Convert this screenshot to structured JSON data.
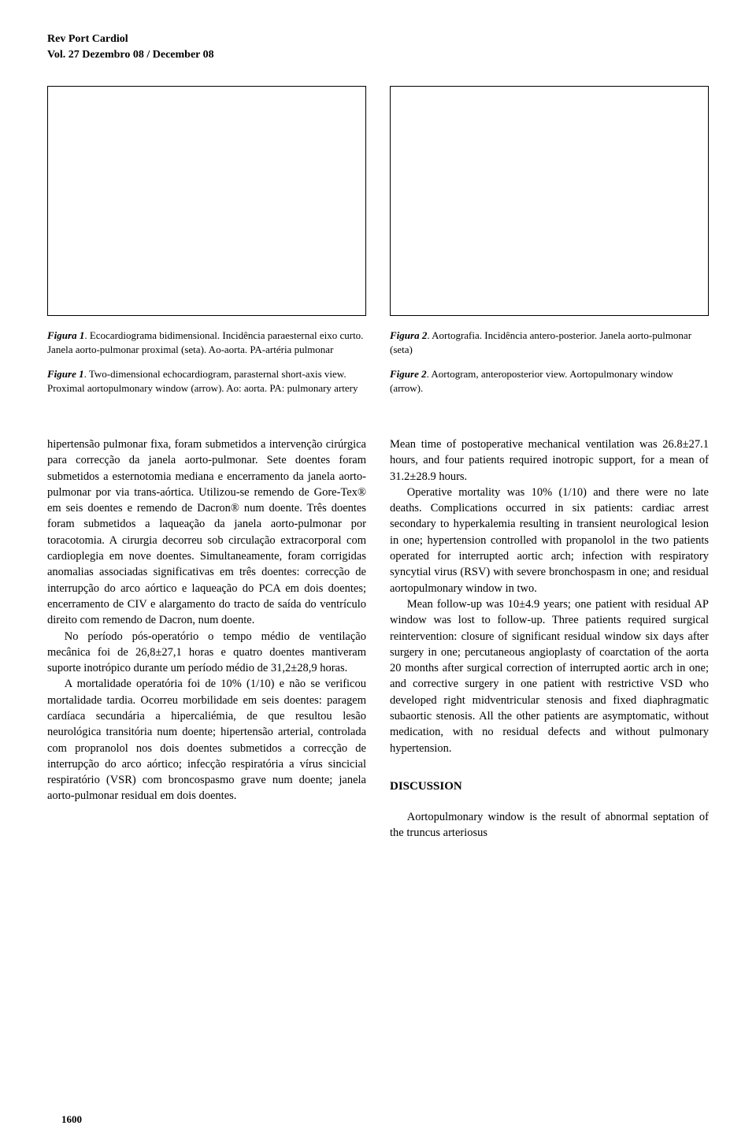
{
  "header": {
    "journal": "Rev Port Cardiol",
    "volume": "Vol. 27 Dezembro 08 / December 08"
  },
  "fig1": {
    "caption_pt_title": "Figura 1",
    "caption_pt_body": ". Ecocardiograma bidimensional. Incidência paraesternal eixo curto. Janela aorto-pulmonar proximal (seta). Ao-aorta. PA-artéria pulmonar",
    "caption_en_title": "Figure 1",
    "caption_en_body": ". Two-dimensional echocardiogram, parasternal short-axis view. Proximal aortopulmonary window (arrow). Ao: aorta. PA: pulmonary artery"
  },
  "fig2": {
    "caption_pt_title": "Figura 2",
    "caption_pt_body": ". Aortografia. Incidência antero-posterior. Janela aorto-pulmonar (seta)",
    "caption_en_title": "Figure 2",
    "caption_en_body": ". Aortogram, anteroposterior view. Aortopulmonary window (arrow)."
  },
  "body_left": {
    "p1": "hipertensão pulmonar fixa, foram submetidos a intervenção cirúrgica para correcção da janela aorto-pulmonar. Sete doentes foram submetidos a esternotomia mediana e encerramento da janela aorto-pulmonar por via trans-aórtica. Utilizou-se remendo de Gore-Tex® em seis doentes e remendo de Dacron® num doente. Três doentes foram submetidos a laqueação da janela aorto-pulmonar por toracotomia. A cirurgia decorreu sob circulação extracorporal com cardioplegia em nove doentes. Simultaneamente, foram corrigidas anomalias associadas significativas em três doentes: correcção de interrupção do arco aórtico e laqueação do PCA em dois doentes; encerramento de CIV e alargamento do tracto de saída do ventrículo direito com remendo de Dacron, num doente.",
    "p2": "No período pós-operatório o tempo médio de ventilação mecânica foi de 26,8±27,1 horas e quatro doentes mantiveram suporte inotrópico durante um período médio de 31,2±28,9 horas.",
    "p3": "A mortalidade operatória foi de 10% (1/10) e não se verificou mortalidade tardia. Ocorreu morbilidade em seis doentes: paragem cardíaca secundária a hipercaliémia, de que resultou lesão neurológica transitória num doente; hipertensão arterial, controlada com propranolol nos dois doentes submetidos a correcção de interrupção do arco aórtico; infecção respiratória a vírus sincicial respiratório (VSR) com broncospasmo grave num doente; janela aorto-pulmonar residual em dois doentes."
  },
  "body_right": {
    "p1": "Mean time of postoperative mechanical ventilation was 26.8±27.1 hours, and four patients required inotropic support, for a mean of 31.2±28.9 hours.",
    "p2": "Operative mortality was 10% (1/10) and there were no late deaths. Complications occurred in six patients: cardiac arrest secondary to hyperkalemia resulting in transient neurological lesion in one; hypertension controlled with propanolol in the two patients operated for interrupted aortic arch; infection with respiratory syncytial virus (RSV) with severe bronchospasm in one; and residual aortopulmonary window in two.",
    "p3": "Mean follow-up was 10±4.9 years; one patient with residual AP window was lost to follow-up. Three patients required surgical reintervention: closure of significant residual window six days after surgery in one; percutaneous angioplasty of coarctation of the aorta 20 months after surgical correction of interrupted aortic arch in one; and corrective surgery in one patient with restrictive VSD who developed right midventricular stenosis and fixed diaphragmatic subaortic stenosis. All the other patients are asymptomatic, without medication, with no residual defects and without pulmonary hypertension.",
    "heading": "DISCUSSION",
    "p4": "Aortopulmonary window is the result of abnormal septation of the truncus arteriosus"
  },
  "page_number": "1600"
}
